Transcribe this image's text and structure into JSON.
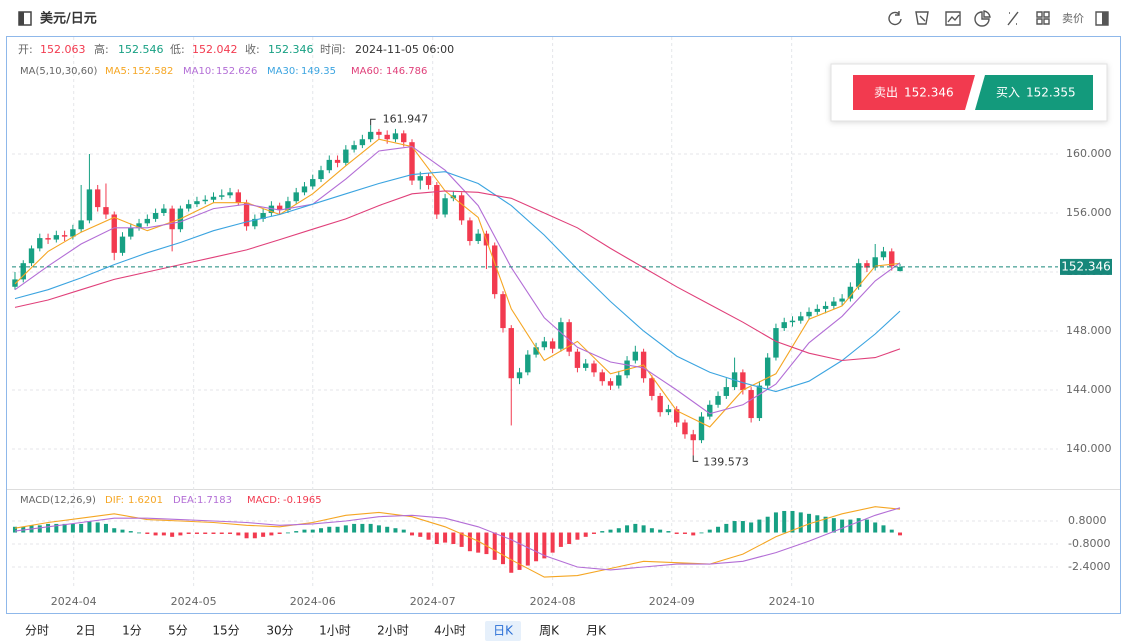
{
  "chart_data": {
    "type": "candlestick",
    "title": "美元/日元",
    "price_type": "卖价",
    "ohlc_labels": [
      "开:",
      "高:",
      "低:",
      "收:"
    ],
    "time_label": "时间:",
    "time": "2024-11-05 06:00",
    "up_color": "#17a083",
    "down_color": "#f23a4f",
    "grid": true,
    "xlim": [
      -0.36,
      126.1
    ],
    "xticks": [
      {
        "value": 7.1,
        "label": "2024-04"
      },
      {
        "value": 21.6,
        "label": "2024-05"
      },
      {
        "value": 36,
        "label": "2024-06"
      },
      {
        "value": 50.5,
        "label": "2024-07"
      },
      {
        "value": 65,
        "label": "2024-08"
      },
      {
        "value": 79.4,
        "label": "2024-09"
      },
      {
        "value": 93.9,
        "label": "2024-10"
      }
    ],
    "ylim": [
      137.36,
      167.93
    ],
    "yticks": [
      {
        "value": 140,
        "label": "140.000"
      },
      {
        "value": 144,
        "label": "144.000"
      },
      {
        "value": 148,
        "label": "148.000"
      },
      {
        "value": 152,
        "label": "152.000"
      },
      {
        "value": 156,
        "label": "156.000"
      },
      {
        "value": 160,
        "label": "160.000"
      }
    ],
    "candles": [
      [
        151.0,
        152.0,
        150.8,
        151.5
      ],
      [
        151.5,
        152.8,
        151.3,
        152.6
      ],
      [
        152.6,
        153.8,
        152.4,
        153.6
      ],
      [
        153.6,
        154.6,
        153.4,
        154.3
      ],
      [
        154.3,
        154.6,
        153.9,
        154.2
      ],
      [
        154.2,
        154.8,
        154.0,
        154.5
      ],
      [
        154.5,
        154.8,
        154.1,
        154.4
      ],
      [
        154.4,
        155.2,
        154.2,
        154.9
      ],
      [
        154.9,
        157.9,
        154.7,
        155.5
      ],
      [
        155.5,
        160.0,
        155.3,
        157.6
      ],
      [
        157.6,
        157.9,
        156.1,
        156.4
      ],
      [
        156.4,
        158.0,
        155.6,
        155.9
      ],
      [
        155.9,
        156.1,
        152.8,
        153.3
      ],
      [
        153.3,
        154.7,
        153.1,
        154.4
      ],
      [
        154.4,
        155.3,
        154.2,
        155.0
      ],
      [
        155.0,
        155.6,
        154.8,
        155.3
      ],
      [
        155.3,
        155.9,
        155.1,
        155.6
      ],
      [
        155.6,
        156.3,
        155.4,
        156.0
      ],
      [
        156.0,
        156.6,
        155.8,
        156.3
      ],
      [
        156.3,
        156.5,
        153.4,
        154.9
      ],
      [
        154.9,
        156.5,
        154.7,
        156.3
      ],
      [
        156.3,
        156.9,
        156.1,
        156.6
      ],
      [
        156.6,
        157.1,
        156.4,
        156.8
      ],
      [
        156.8,
        157.2,
        156.6,
        156.9
      ],
      [
        156.9,
        157.4,
        156.7,
        157.1
      ],
      [
        157.1,
        157.6,
        156.9,
        157.2
      ],
      [
        157.2,
        157.7,
        157.0,
        157.4
      ],
      [
        157.4,
        157.6,
        156.5,
        156.7
      ],
      [
        156.7,
        156.9,
        154.8,
        155.1
      ],
      [
        155.1,
        155.9,
        154.9,
        155.6
      ],
      [
        155.6,
        156.3,
        155.4,
        156.0
      ],
      [
        156.0,
        156.8,
        155.8,
        156.5
      ],
      [
        156.5,
        156.7,
        155.9,
        156.2
      ],
      [
        156.2,
        157.1,
        156.0,
        156.8
      ],
      [
        156.8,
        157.7,
        156.6,
        157.4
      ],
      [
        157.4,
        158.1,
        157.2,
        157.8
      ],
      [
        157.8,
        158.6,
        157.6,
        158.3
      ],
      [
        158.3,
        159.2,
        158.1,
        158.9
      ],
      [
        158.9,
        159.9,
        158.7,
        159.6
      ],
      [
        159.6,
        159.9,
        159.1,
        159.4
      ],
      [
        159.4,
        160.6,
        159.2,
        160.3
      ],
      [
        160.3,
        160.9,
        160.1,
        160.6
      ],
      [
        160.6,
        161.3,
        160.4,
        161.0
      ],
      [
        161.0,
        161.947,
        160.8,
        161.5
      ],
      [
        161.5,
        161.7,
        161.0,
        161.3
      ],
      [
        161.3,
        161.6,
        160.7,
        161.0
      ],
      [
        161.0,
        161.7,
        160.8,
        161.4
      ],
      [
        161.4,
        161.6,
        160.5,
        160.8
      ],
      [
        160.8,
        161.0,
        157.9,
        158.2
      ],
      [
        158.2,
        158.8,
        157.6,
        158.5
      ],
      [
        158.5,
        158.7,
        157.6,
        157.9
      ],
      [
        157.9,
        158.1,
        155.6,
        155.9
      ],
      [
        155.9,
        157.3,
        155.7,
        157.0
      ],
      [
        157.0,
        157.5,
        156.8,
        157.2
      ],
      [
        157.2,
        157.4,
        155.2,
        155.5
      ],
      [
        155.5,
        155.7,
        153.8,
        154.1
      ],
      [
        154.1,
        154.9,
        153.9,
        154.6
      ],
      [
        154.6,
        154.8,
        152.2,
        153.8
      ],
      [
        153.8,
        154.0,
        150.2,
        150.5
      ],
      [
        150.5,
        150.7,
        147.9,
        148.2
      ],
      [
        148.2,
        148.4,
        141.6,
        144.8
      ],
      [
        144.8,
        145.5,
        144.4,
        145.2
      ],
      [
        145.2,
        146.7,
        145.0,
        146.4
      ],
      [
        146.4,
        147.2,
        146.2,
        146.9
      ],
      [
        146.9,
        147.6,
        146.7,
        147.3
      ],
      [
        147.3,
        147.5,
        146.5,
        146.8
      ],
      [
        146.8,
        148.9,
        146.6,
        148.6
      ],
      [
        148.6,
        148.8,
        146.3,
        146.6
      ],
      [
        146.6,
        146.8,
        145.2,
        145.5
      ],
      [
        145.5,
        146.1,
        145.3,
        145.8
      ],
      [
        145.8,
        146.0,
        144.9,
        145.2
      ],
      [
        145.2,
        145.4,
        144.3,
        144.6
      ],
      [
        144.6,
        144.8,
        144.0,
        144.3
      ],
      [
        144.3,
        145.3,
        144.1,
        145.0
      ],
      [
        145.0,
        146.3,
        144.8,
        146.0
      ],
      [
        146.0,
        147.0,
        145.8,
        146.6
      ],
      [
        146.6,
        146.8,
        144.5,
        144.8
      ],
      [
        144.8,
        145.0,
        143.3,
        143.6
      ],
      [
        143.6,
        143.8,
        142.2,
        142.5
      ],
      [
        142.5,
        143.0,
        142.3,
        142.7
      ],
      [
        142.7,
        142.9,
        141.5,
        141.8
      ],
      [
        141.8,
        142.0,
        140.7,
        141.0
      ],
      [
        141.0,
        141.3,
        139.573,
        140.6
      ],
      [
        140.6,
        142.5,
        140.4,
        142.2
      ],
      [
        142.2,
        143.3,
        142.0,
        143.0
      ],
      [
        143.0,
        143.9,
        142.8,
        143.6
      ],
      [
        143.6,
        144.8,
        143.4,
        144.2
      ],
      [
        144.2,
        146.2,
        144.0,
        145.2
      ],
      [
        145.2,
        145.4,
        143.7,
        144.0
      ],
      [
        144.0,
        144.2,
        141.8,
        142.1
      ],
      [
        142.1,
        144.6,
        141.9,
        144.3
      ],
      [
        144.3,
        146.5,
        144.1,
        146.2
      ],
      [
        146.2,
        148.5,
        146.0,
        148.2
      ],
      [
        148.2,
        148.9,
        148.0,
        148.6
      ],
      [
        148.6,
        149.0,
        148.3,
        148.7
      ],
      [
        148.7,
        149.3,
        148.5,
        149.0
      ],
      [
        149.0,
        149.6,
        148.8,
        149.3
      ],
      [
        149.3,
        149.8,
        149.1,
        149.5
      ],
      [
        149.5,
        150.0,
        149.2,
        149.7
      ],
      [
        149.7,
        150.3,
        149.5,
        150.0
      ],
      [
        150.0,
        150.5,
        149.7,
        150.2
      ],
      [
        150.2,
        151.3,
        150.0,
        151.0
      ],
      [
        151.0,
        152.9,
        150.8,
        152.6
      ],
      [
        152.6,
        152.8,
        152.0,
        152.3
      ],
      [
        152.3,
        153.9,
        152.1,
        153.0
      ],
      [
        153.0,
        153.7,
        152.8,
        153.4
      ],
      [
        153.4,
        153.6,
        152.1,
        152.4
      ],
      [
        152.063,
        152.546,
        152.042,
        152.346
      ]
    ],
    "ma_title": "MA(5,10,30,60)",
    "ma": [
      {
        "name": "MA5:",
        "color": "#f5a623",
        "x": [
          0,
          4,
          8,
          12,
          16,
          20,
          24,
          28,
          32,
          36,
          40,
          44,
          48,
          52,
          56,
          60,
          64,
          68,
          72,
          76,
          80,
          84,
          88,
          92,
          96,
          100,
          104,
          107
        ],
        "values": [
          151.2,
          153.4,
          154.7,
          155.7,
          154.8,
          155.6,
          156.7,
          156.7,
          155.9,
          157.3,
          159.2,
          161.0,
          160.5,
          157.5,
          155.7,
          149.5,
          146.0,
          147.3,
          145.1,
          145.7,
          142.6,
          141.5,
          144.0,
          145.1,
          148.8,
          149.7,
          152.4,
          152.582
        ]
      },
      {
        "name": "MA10:",
        "color": "#b36ed6",
        "x": [
          0,
          4,
          8,
          12,
          16,
          20,
          24,
          28,
          32,
          36,
          40,
          44,
          48,
          52,
          56,
          60,
          64,
          68,
          72,
          76,
          80,
          84,
          88,
          92,
          96,
          100,
          104,
          107
        ],
        "values": [
          150.8,
          152.4,
          153.9,
          155.0,
          155.0,
          155.4,
          156.3,
          156.6,
          156.2,
          156.6,
          158.3,
          160.2,
          160.5,
          158.9,
          156.5,
          152.3,
          148.9,
          146.9,
          145.9,
          145.5,
          144.0,
          142.4,
          143.0,
          144.4,
          147.2,
          149.0,
          151.4,
          152.626
        ]
      },
      {
        "name": "MA30:",
        "color": "#3ba4e0",
        "x": [
          0,
          4,
          8,
          12,
          16,
          20,
          24,
          28,
          32,
          36,
          40,
          44,
          48,
          52,
          56,
          60,
          64,
          68,
          72,
          76,
          80,
          84,
          88,
          92,
          96,
          100,
          104,
          107
        ],
        "values": [
          150.2,
          150.8,
          151.6,
          152.5,
          153.3,
          154.0,
          154.8,
          155.4,
          155.9,
          156.6,
          157.3,
          158.0,
          158.6,
          158.8,
          158.0,
          156.5,
          154.5,
          152.2,
          150.0,
          148.0,
          146.3,
          145.2,
          144.5,
          143.9,
          144.6,
          146.0,
          147.8,
          149.35
        ]
      },
      {
        "name": "MA60:",
        "color": "#e0407a",
        "x": [
          0,
          4,
          8,
          12,
          16,
          20,
          24,
          28,
          32,
          36,
          40,
          44,
          48,
          52,
          56,
          60,
          64,
          68,
          72,
          76,
          80,
          84,
          88,
          92,
          96,
          100,
          104,
          107
        ],
        "values": [
          149.6,
          150.1,
          150.8,
          151.5,
          152.0,
          152.5,
          153.0,
          153.5,
          154.2,
          154.9,
          155.6,
          156.5,
          157.3,
          157.5,
          157.4,
          157.0,
          156.0,
          155.0,
          153.6,
          152.3,
          151.0,
          149.8,
          148.6,
          147.3,
          146.5,
          146.0,
          146.2,
          146.786
        ]
      }
    ],
    "trade": {
      "sell_label": "卖出",
      "buy_label": "买入",
      "buy_price": 152.355
    },
    "macd": {
      "title": "MACD(12,26,9)",
      "ylim": [
        -3.86,
        2.82
      ],
      "yticks": [
        {
          "value": 0.8,
          "label": "0.8000"
        },
        {
          "value": -0.8,
          "label": "-0.8000"
        },
        {
          "value": -2.4,
          "label": "-2.4000"
        }
      ],
      "hist_name": "MACD:",
      "up_color": "#17a083",
      "down_color": "#f23a4f",
      "hist": [
        0.4,
        0.4,
        0.5,
        0.5,
        0.6,
        0.6,
        0.6,
        0.6,
        0.6,
        0.8,
        0.7,
        0.6,
        0.3,
        0.2,
        0.1,
        0.0,
        -0.1,
        -0.2,
        -0.2,
        -0.3,
        -0.2,
        -0.1,
        -0.1,
        -0.1,
        -0.1,
        -0.1,
        -0.1,
        -0.2,
        -0.4,
        -0.4,
        -0.3,
        -0.2,
        -0.1,
        0.0,
        0.1,
        0.2,
        0.2,
        0.3,
        0.4,
        0.4,
        0.5,
        0.6,
        0.6,
        0.6,
        0.5,
        0.4,
        0.3,
        0.2,
        -0.2,
        -0.3,
        -0.5,
        -0.8,
        -0.7,
        -0.8,
        -1.0,
        -1.3,
        -1.4,
        -1.5,
        -1.9,
        -2.2,
        -2.8,
        -2.6,
        -2.3,
        -2.0,
        -1.8,
        -1.4,
        -1.0,
        -0.8,
        -0.5,
        -0.3,
        -0.1,
        0.1,
        0.2,
        0.3,
        0.5,
        0.6,
        0.5,
        0.3,
        0.2,
        0.1,
        -0.1,
        -0.1,
        -0.2,
        0.0,
        0.2,
        0.4,
        0.6,
        0.8,
        0.8,
        0.7,
        0.9,
        1.1,
        1.4,
        1.5,
        1.5,
        1.4,
        1.3,
        1.2,
        1.1,
        1.0,
        0.9,
        0.9,
        1.0,
        0.9,
        0.7,
        0.5,
        0.2,
        -0.1965
      ],
      "lines": [
        {
          "name": "DIF:",
          "color": "#f5a623",
          "x": [
            0,
            4,
            8,
            12,
            16,
            20,
            24,
            28,
            32,
            36,
            40,
            44,
            48,
            52,
            56,
            60,
            64,
            68,
            72,
            76,
            80,
            84,
            88,
            92,
            96,
            100,
            104,
            107
          ],
          "values": [
            0.3,
            0.7,
            1.0,
            1.3,
            0.9,
            0.8,
            0.7,
            0.5,
            0.4,
            0.7,
            1.2,
            1.4,
            1.1,
            0.4,
            -0.6,
            -1.9,
            -3.1,
            -3.0,
            -2.5,
            -2.0,
            -2.1,
            -2.2,
            -1.5,
            -0.3,
            0.6,
            1.3,
            1.8,
            1.6201
          ]
        },
        {
          "name": "DEA:",
          "color": "#b36ed6",
          "x": [
            0,
            4,
            8,
            12,
            16,
            20,
            24,
            28,
            32,
            36,
            40,
            44,
            48,
            52,
            56,
            60,
            64,
            68,
            72,
            76,
            80,
            84,
            88,
            92,
            96,
            100,
            104,
            107
          ],
          "values": [
            0.1,
            0.4,
            0.7,
            1.0,
            1.0,
            0.9,
            0.8,
            0.7,
            0.5,
            0.6,
            0.8,
            1.1,
            1.2,
            1.0,
            0.4,
            -0.5,
            -1.6,
            -2.4,
            -2.6,
            -2.4,
            -2.2,
            -2.2,
            -2.0,
            -1.4,
            -0.6,
            0.3,
            1.2,
            1.7183
          ]
        }
      ]
    },
    "tabs": [
      "分时",
      "2日",
      "1分",
      "5分",
      "15分",
      "30分",
      "1小时",
      "2小时",
      "4小时",
      "日K",
      "周K",
      "月K"
    ],
    "active_tab": 9
  }
}
